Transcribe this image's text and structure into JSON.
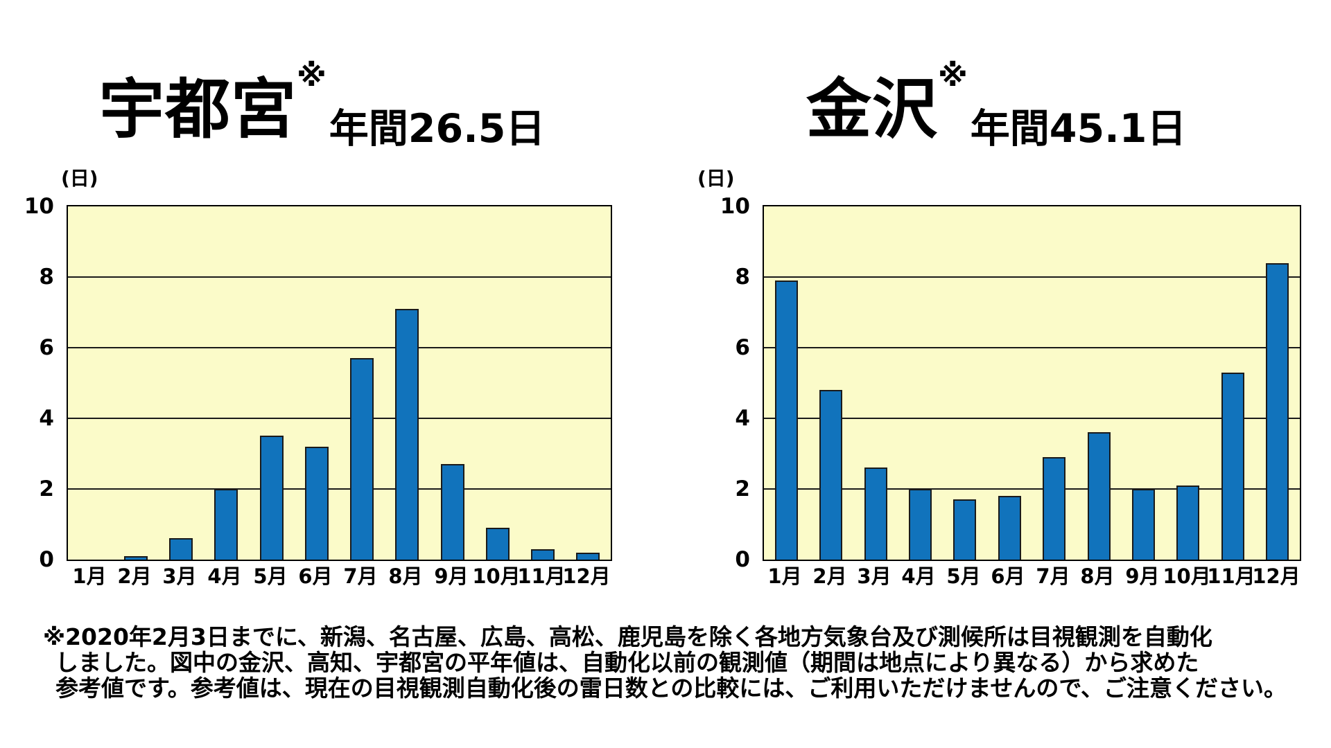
{
  "colors": {
    "page_background": "#FFFFFF",
    "text": "#000000",
    "bar_fill": "#1173BC",
    "bar_border": "#1A1A1A",
    "plot_background": "#FBFBC9",
    "gridline": "#1A1A1A",
    "axis_border": "#000000"
  },
  "chart_data": [
    {
      "type": "bar",
      "title_city": "宇都宮",
      "title_note_marker": "※",
      "title_annual": "年間26.5日",
      "annual_days": 26.5,
      "unit_label": "(日)",
      "categories": [
        "1月",
        "2月",
        "3月",
        "4月",
        "5月",
        "6月",
        "7月",
        "8月",
        "9月",
        "10月",
        "11月",
        "12月"
      ],
      "values": [
        0,
        0.1,
        0.6,
        2.0,
        3.5,
        3.2,
        5.7,
        7.1,
        2.7,
        0.9,
        0.3,
        0.2
      ],
      "xlabel": "",
      "ylabel": "(日)",
      "ylim": [
        0,
        10
      ],
      "yticks": [
        0,
        2,
        4,
        6,
        8,
        10
      ],
      "grid": true,
      "legend": "none"
    },
    {
      "type": "bar",
      "title_city": "金沢",
      "title_note_marker": "※",
      "title_annual": "年間45.1日",
      "annual_days": 45.1,
      "unit_label": "(日)",
      "categories": [
        "1月",
        "2月",
        "3月",
        "4月",
        "5月",
        "6月",
        "7月",
        "8月",
        "9月",
        "10月",
        "11月",
        "12月"
      ],
      "values": [
        7.9,
        4.8,
        2.6,
        2.0,
        1.7,
        1.8,
        2.9,
        3.6,
        2.0,
        2.1,
        5.3,
        8.4
      ],
      "xlabel": "",
      "ylabel": "(日)",
      "ylim": [
        0,
        10
      ],
      "yticks": [
        0,
        2,
        4,
        6,
        8,
        10
      ],
      "grid": true,
      "legend": "none"
    }
  ],
  "footnote": {
    "lines": [
      "※2020年2月3日までに、新潟、名古屋、広島、高松、鹿児島を除く各地方気象台及び測候所は目視観測を自動化",
      "しました。図中の金沢、高知、宇都宮の平年値は、自動化以前の観測値（期間は地点により異なる）から求めた",
      "参考値です。参考値は、現在の目視観測自動化後の雷日数との比較には、ご利用いただけませんので、ご注意ください。"
    ]
  }
}
